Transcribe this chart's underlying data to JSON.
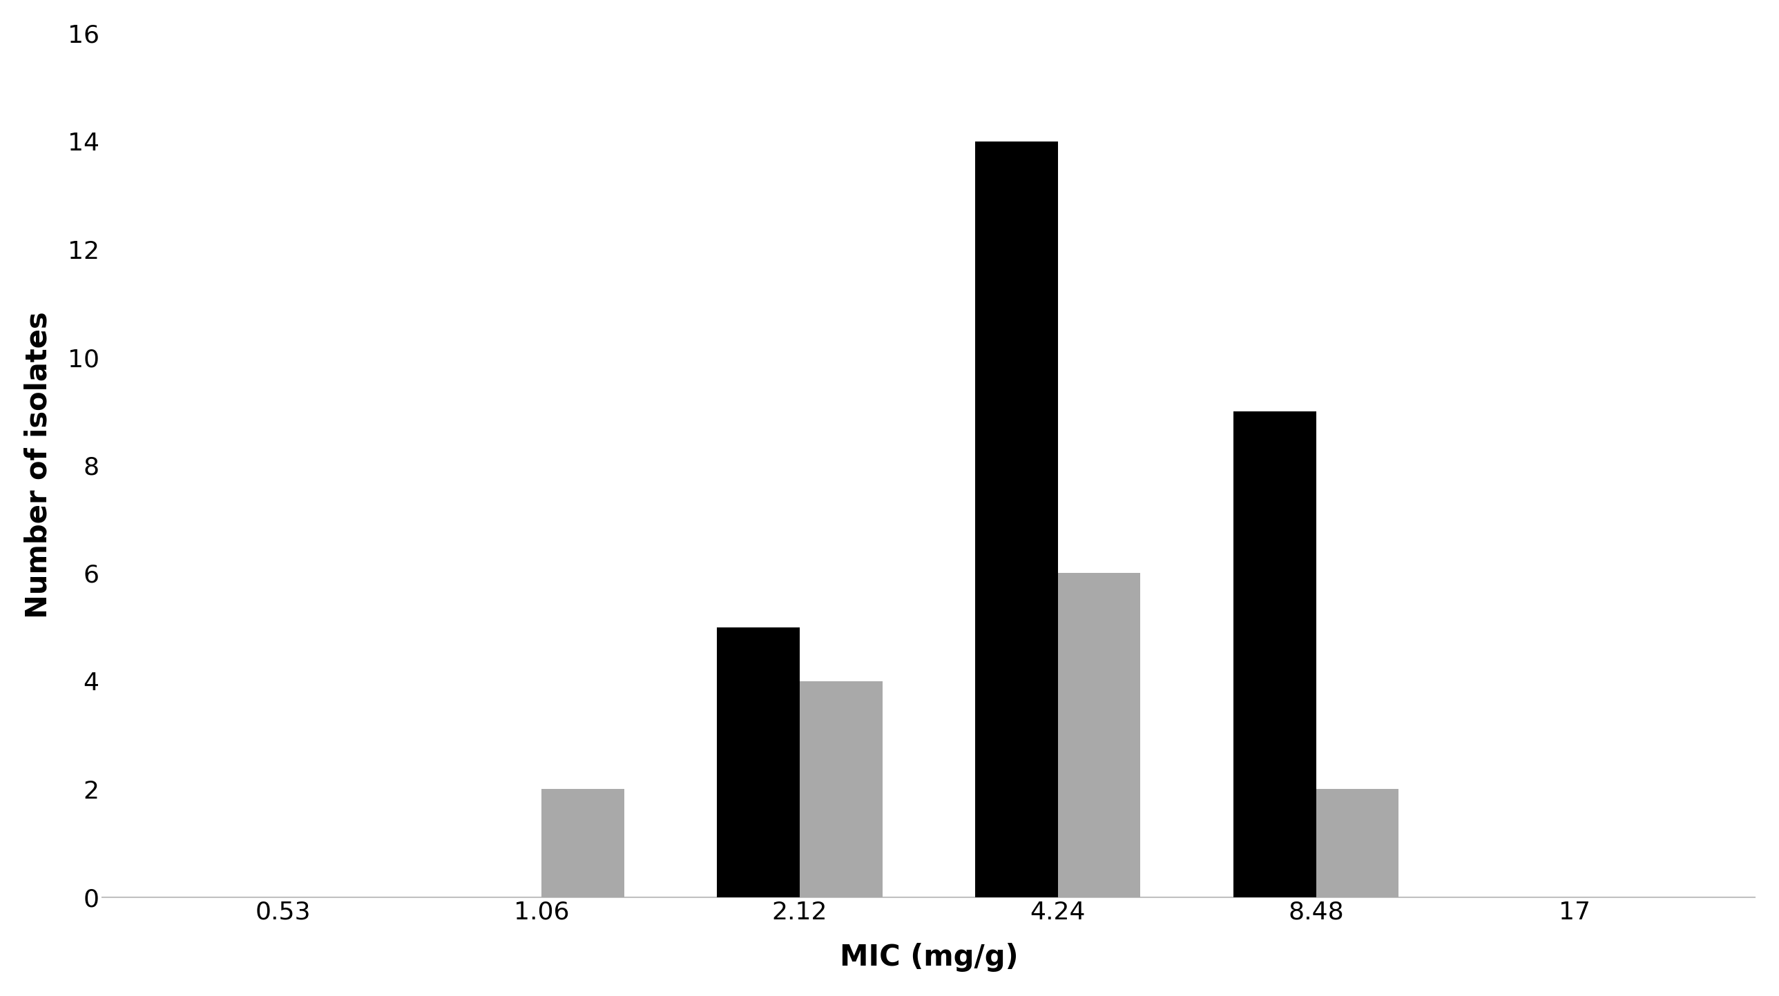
{
  "categories": [
    "0.53",
    "1.06",
    "2.12",
    "4.24",
    "8.48",
    "17"
  ],
  "black_values": [
    0,
    0,
    5,
    14,
    9,
    0
  ],
  "gray_values": [
    0,
    2,
    4,
    6,
    2,
    0
  ],
  "black_color": "#000000",
  "gray_color": "#a9a9a9",
  "xlabel": "MIC (mg/g)",
  "ylabel": "Number of isolates",
  "ylim": [
    0,
    16
  ],
  "yticks": [
    0,
    2,
    4,
    6,
    8,
    10,
    12,
    14,
    16
  ],
  "background_color": "#ffffff",
  "bar_width": 0.32,
  "xlabel_fontsize": 30,
  "ylabel_fontsize": 30,
  "tick_fontsize": 26,
  "tick_color": "#000000",
  "spine_color": "#c0c0c0"
}
